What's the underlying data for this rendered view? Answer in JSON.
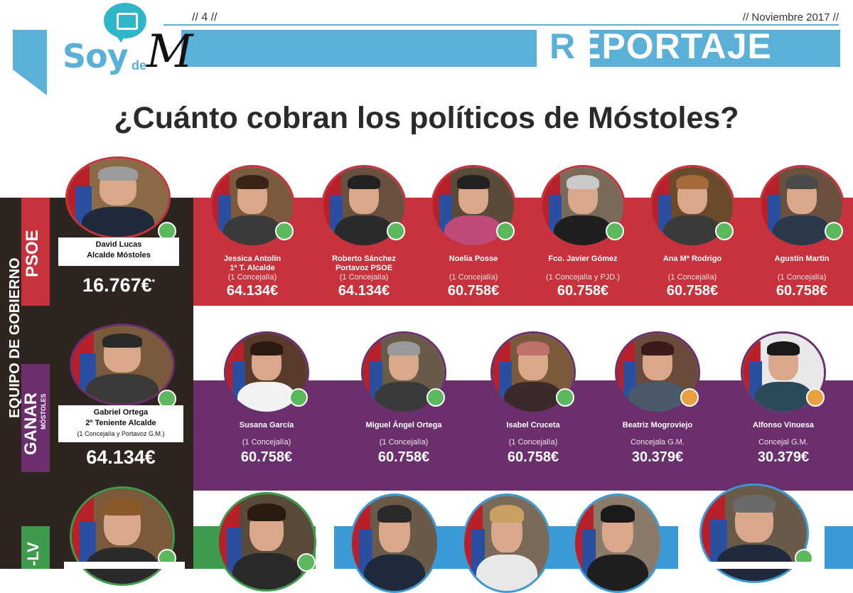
{
  "header": {
    "page_marker": "// 4 //",
    "date": "// Noviembre 2017 //",
    "logo_soy": "Soy",
    "logo_de": "de",
    "logo_m": "M",
    "section_initial": "R",
    "section_rest": "EPORTAJE"
  },
  "headline": "¿Cuánto cobran los políticos de Móstoles?",
  "sidebar_label": "EQUIPO DE GOBIERNO",
  "colors": {
    "psoe": "#c8323c",
    "ganar": "#6b2f6e",
    "iu": "#3e9b4c",
    "pp": "#3a9ad6",
    "dark": "#2e2520",
    "green_dot": "#5cb85c",
    "orange_dot": "#e8a040"
  },
  "psoe": {
    "label": "PSOE",
    "lead": {
      "name": "David Lucas",
      "role": "Alcalde Móstoles",
      "salary": "16.767€",
      "mark": "*"
    },
    "members": [
      {
        "name": "Jessica Antolín",
        "role": "1ª T. Alcalde",
        "detail": "(1 Concejalía)",
        "salary": "64.134€"
      },
      {
        "name": "Roberto Sánchez",
        "role": "Portavoz PSOE",
        "detail": "(1 Concejalía)",
        "salary": "64.134€"
      },
      {
        "name": "Noelia Posse",
        "role": "",
        "detail": "(1 Concejalía)",
        "salary": "60.758€"
      },
      {
        "name": "Fco. Javier Gómez",
        "role": "",
        "detail": "(1 Concejalía y PJD.)",
        "salary": "60.758€"
      },
      {
        "name": "Ana Mª Rodrigo",
        "role": "",
        "detail": "(1 Concejalía)",
        "salary": "60.758€"
      },
      {
        "name": "Agustín Martín",
        "role": "",
        "detail": "(1 Concejalía)",
        "salary": "60.758€"
      }
    ]
  },
  "ganar": {
    "label": "GANAR",
    "sublabel": "MÓSTOLES",
    "lead": {
      "name": "Gabriel Ortega",
      "role": "2º Teniente Alcalde",
      "detail": "(1 Concejalía y Portavoz G.M.)",
      "salary": "64.134€"
    },
    "members": [
      {
        "name": "Susana García",
        "detail": "(1 Concejalía)",
        "salary": "60.758€"
      },
      {
        "name": "Miguel Ángel Ortega",
        "detail": "(1 Concejalía)",
        "salary": "60.758€"
      },
      {
        "name": "Isabel Cruceta",
        "detail": "(1 Concejalía)",
        "salary": "60.758€"
      },
      {
        "name": "Beatriz Mogroviejo",
        "detail": "Concejala G.M.",
        "salary": "30.379€"
      },
      {
        "name": "Alfonso Vinuesa",
        "detail": "Concejal G.M.",
        "salary": "30.379€"
      }
    ]
  },
  "iu": {
    "label": "-LV"
  }
}
